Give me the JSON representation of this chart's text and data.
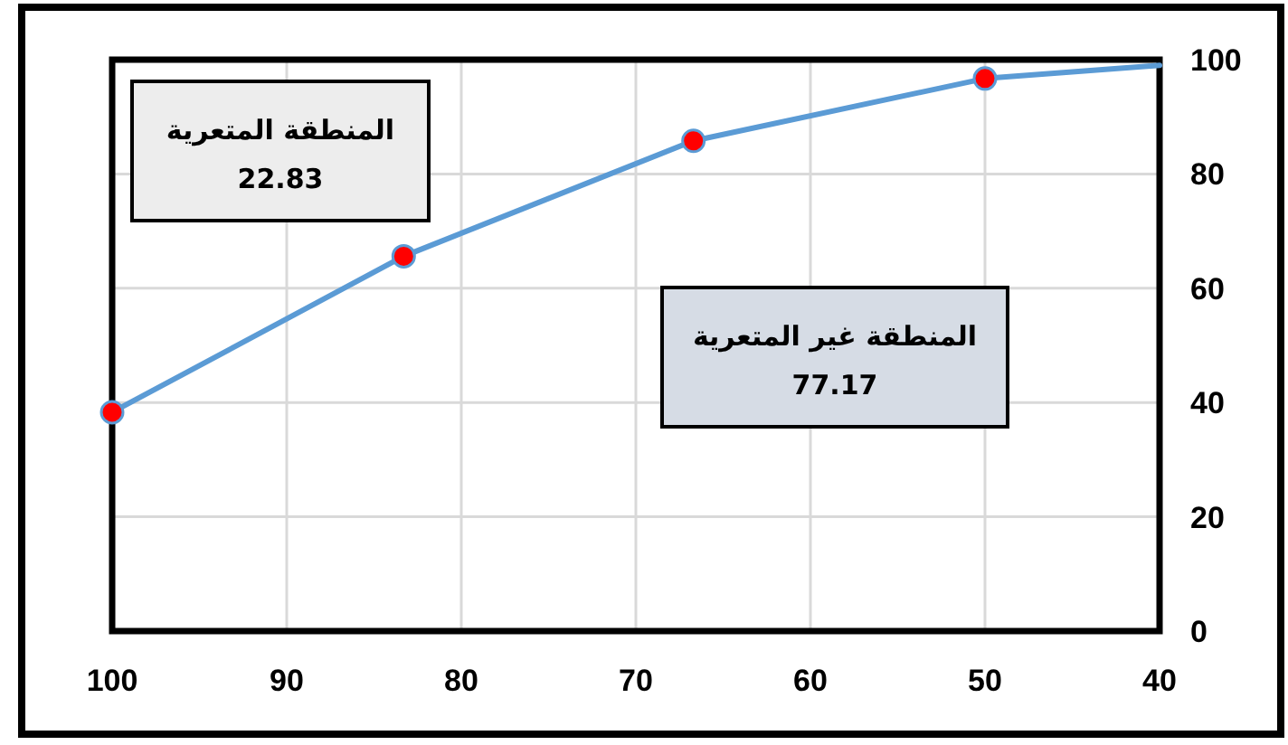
{
  "chart_data": {
    "type": "line",
    "series": [
      {
        "color": "#5b9bd5",
        "marker": "none",
        "x": [
          100,
          83.3,
          66.7,
          50,
          40
        ],
        "values": [
          38.3,
          65.6,
          85.8,
          96.7,
          99.0
        ]
      },
      {
        "type": "scatter",
        "color": "#ff0000",
        "marker": "circle",
        "x": [
          100,
          83.3,
          66.7,
          50
        ],
        "values": [
          38.3,
          65.6,
          85.8,
          96.7
        ]
      }
    ],
    "xlim": [
      100,
      40
    ],
    "xticks": [
      100,
      90,
      80,
      70,
      60,
      50,
      40
    ],
    "ylim": [
      0,
      100
    ],
    "yticks": [
      0,
      20,
      40,
      60,
      80,
      100
    ],
    "grid": true,
    "annotations": [
      "المنطقة المتعرية\n22.83",
      "المنطقة غير المتعرية\n77.17"
    ]
  }
}
